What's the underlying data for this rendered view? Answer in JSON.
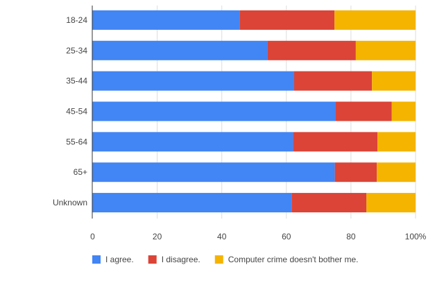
{
  "chart_data": {
    "type": "bar",
    "orientation": "horizontal",
    "stacked": "percent",
    "categories": [
      "18-24",
      "25-34",
      "35-44",
      "45-54",
      "55-64",
      "65+",
      "Unknown"
    ],
    "series": [
      {
        "name": "I agree.",
        "color": "#4285F4",
        "values": [
          45.5,
          54.1,
          62.4,
          75.2,
          62.1,
          75.0,
          61.6
        ]
      },
      {
        "name": "I disagree.",
        "color": "#DB4437",
        "values": [
          29.4,
          27.4,
          24.1,
          17.4,
          26.1,
          13.0,
          23.2
        ]
      },
      {
        "name": "Computer crime doesn't bother me.",
        "color": "#F4B400",
        "values": [
          25.1,
          18.5,
          13.5,
          7.4,
          11.8,
          12.0,
          15.2
        ]
      }
    ],
    "xlim": [
      0,
      100
    ],
    "xticks": [
      "0",
      "20",
      "40",
      "60",
      "80",
      "100%"
    ],
    "grid": true,
    "legend": "bottom"
  }
}
